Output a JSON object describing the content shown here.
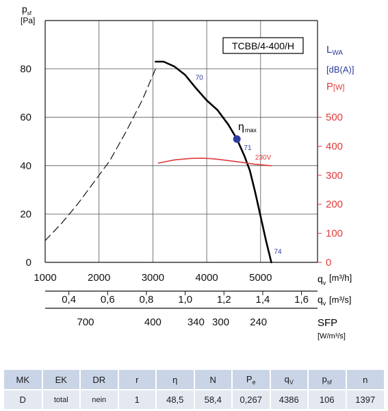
{
  "chart_data": {
    "type": "line",
    "model_label": "TCBB/4-400/H",
    "xlabel": "q_v [m³/h]",
    "x_unit": "[m³/h]",
    "ylabel": "p_sf [Pa]",
    "y_unit": "[Pa]",
    "right_axis": {
      "lwa_label": "L_WA",
      "dba_label": "[dB(A)]",
      "power_label": "P[W]"
    },
    "xlim": [
      1000,
      5500
    ],
    "ylim": [
      0,
      100
    ],
    "grid": true,
    "x_ticks": [
      "1000",
      "2000",
      "3000",
      "4000",
      "5000"
    ],
    "y_ticks": [
      "0",
      "20",
      "40",
      "60",
      "80"
    ],
    "power_ticks": [
      {
        "label": "0",
        "value": 0
      },
      {
        "label": "100",
        "value": 100
      },
      {
        "label": "200",
        "value": 200
      },
      {
        "label": "300",
        "value": 300
      },
      {
        "label": "400",
        "value": 400
      },
      {
        "label": "500",
        "value": 500
      }
    ],
    "power_axis_range": [
      0,
      833
    ],
    "secondary_axis_ms": {
      "label": "[m³/s]",
      "ticks": [
        {
          "label": "0,4",
          "value": 0.4
        },
        {
          "label": "0,6",
          "value": 0.6
        },
        {
          "label": "0,8",
          "value": 0.8
        },
        {
          "label": "1,0",
          "value": 1.0
        },
        {
          "label": "1,2",
          "value": 1.2
        },
        {
          "label": "1,4",
          "value": 1.4
        },
        {
          "label": "1,6",
          "value": 1.6
        }
      ]
    },
    "sfp_axis": {
      "label": "SFP",
      "unit": "[W/m³/s]",
      "ticks": [
        {
          "label": "700",
          "q": 1750
        },
        {
          "label": "400",
          "q": 3000
        },
        {
          "label": "340",
          "q": 3800
        },
        {
          "label": "300",
          "q": 4260
        },
        {
          "label": "240",
          "q": 4960
        }
      ]
    },
    "series": [
      {
        "style": "dashed",
        "color": "#111111",
        "x": [
          1000,
          1300,
          1600,
          1900,
          2200,
          2500,
          2800,
          3050
        ],
        "y": [
          9,
          16,
          24,
          33,
          42,
          54,
          67,
          80
        ]
      },
      {
        "style": "solid",
        "color": "#000000",
        "x": [
          3050,
          3200,
          3400,
          3600,
          3800,
          4000,
          4200,
          4400,
          4560,
          4700,
          4800,
          4900,
          5000,
          5100,
          5200
        ],
        "y": [
          83,
          83,
          81,
          77.5,
          72,
          67,
          63,
          57,
          51,
          44,
          38,
          29,
          19,
          9,
          0
        ]
      },
      {
        "style": "solid",
        "color": "#e03a3a",
        "axis": "power",
        "x": [
          3100,
          3400,
          3700,
          3900,
          4100,
          4300,
          4600,
          4900,
          5200
        ],
        "y": [
          342,
          353,
          358,
          359,
          357,
          353,
          346,
          338,
          333
        ]
      }
    ],
    "annotations": [
      {
        "text": "70",
        "x": 3790,
        "y": 75.5,
        "color": "#2a3a9a"
      },
      {
        "text": "71",
        "x": 4690,
        "y": 46.5,
        "color": "#2a3a9a"
      },
      {
        "text": "74",
        "x": 5250,
        "y": 3.5,
        "color": "#2a3a9a"
      },
      {
        "text": "230V",
        "x": 4900,
        "y": 42.5,
        "color": "#e03a3a"
      }
    ],
    "eta_max": {
      "label": "η",
      "sub": "max",
      "x": 4560,
      "y": 51
    }
  },
  "table": {
    "columns": [
      "MK",
      "EK",
      "DR",
      "r",
      "η",
      "N",
      "P_e",
      "q_V",
      "p_sf",
      "n"
    ],
    "row": [
      "D",
      "total",
      "nein",
      "1",
      "48,5",
      "58,4",
      "0,267",
      "4386",
      "106",
      "1397"
    ]
  },
  "colors": {
    "red": "#e03a3a",
    "blue": "#2a3a9a",
    "marker": "#2e3d9e",
    "table_head": "#c9d4e6",
    "table_row": "#e3e8f1"
  }
}
